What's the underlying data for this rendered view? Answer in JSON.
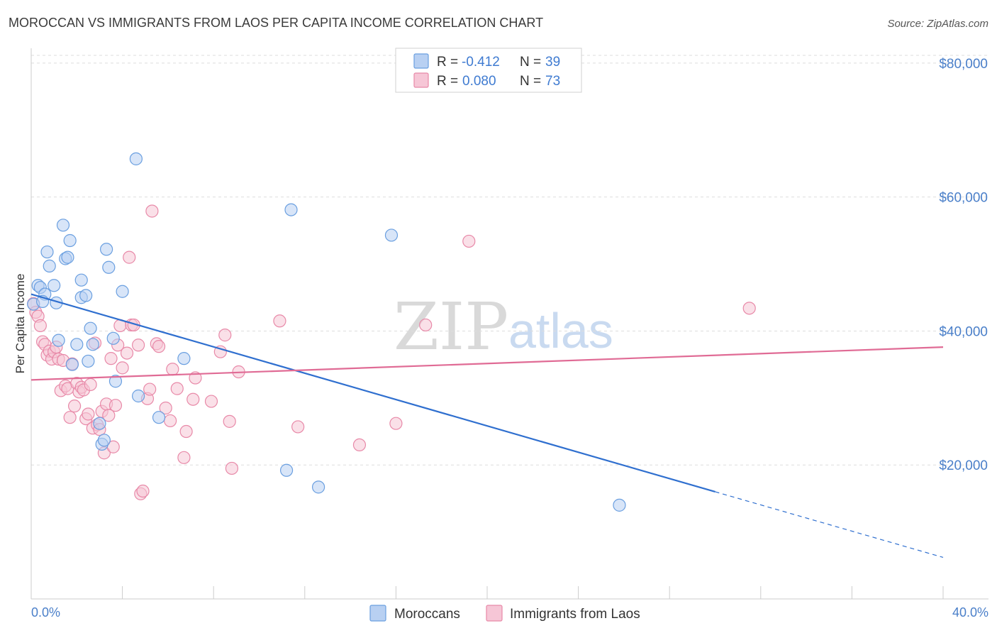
{
  "chart_data": {
    "type": "scatter",
    "title": "MOROCCAN VS IMMIGRANTS FROM LAOS PER CAPITA INCOME CORRELATION CHART",
    "source": "Source: ZipAtlas.com",
    "ylabel": "Per Capita Income",
    "xlabel": "",
    "xlim": [
      0,
      40
    ],
    "ylim": [
      0,
      82000
    ],
    "x_tick_labels": [
      "0.0%",
      "40.0%"
    ],
    "y_ticks": [
      {
        "value": 20000,
        "label": "$20,000"
      },
      {
        "value": 40000,
        "label": "$40,000"
      },
      {
        "value": 60000,
        "label": "$60,000"
      },
      {
        "value": 80000,
        "label": "$80,000"
      }
    ],
    "watermark": {
      "part1": "ZIP",
      "part2": "atlas"
    },
    "legend": {
      "r_label": "R =",
      "n_label": "N =",
      "entries": [
        {
          "r": "-0.412",
          "n": "39"
        },
        {
          "r": "0.080",
          "n": "73"
        }
      ]
    },
    "series": [
      {
        "name": "Moroccans",
        "color": "#6a9fe0",
        "fill": "#b8d0f2",
        "trend": {
          "x0": 0,
          "y0": 45500,
          "x1": 30,
          "y1": 16000,
          "dash_to_x": 40,
          "dash_to_y": 6200,
          "color": "#2f6fcf"
        },
        "points": [
          [
            0.1,
            44000
          ],
          [
            0.3,
            46800
          ],
          [
            0.4,
            46500
          ],
          [
            0.6,
            45500
          ],
          [
            0.7,
            51800
          ],
          [
            0.8,
            49700
          ],
          [
            1.0,
            46800
          ],
          [
            1.1,
            44200
          ],
          [
            1.2,
            38600
          ],
          [
            1.4,
            55800
          ],
          [
            1.5,
            50800
          ],
          [
            1.6,
            51000
          ],
          [
            1.7,
            53500
          ],
          [
            1.8,
            35000
          ],
          [
            2.0,
            38000
          ],
          [
            2.2,
            47600
          ],
          [
            2.2,
            45000
          ],
          [
            2.4,
            45300
          ],
          [
            2.6,
            40400
          ],
          [
            2.5,
            35500
          ],
          [
            2.7,
            38000
          ],
          [
            3.0,
            26200
          ],
          [
            3.1,
            23100
          ],
          [
            3.2,
            23700
          ],
          [
            3.3,
            52200
          ],
          [
            3.4,
            49500
          ],
          [
            3.6,
            38900
          ],
          [
            3.7,
            32500
          ],
          [
            4.0,
            45900
          ],
          [
            4.6,
            65700
          ],
          [
            4.7,
            30300
          ],
          [
            5.6,
            27100
          ],
          [
            6.7,
            35900
          ],
          [
            11.2,
            19200
          ],
          [
            11.4,
            58100
          ],
          [
            12.6,
            16700
          ],
          [
            15.8,
            54300
          ],
          [
            25.8,
            14000
          ],
          [
            0.5,
            44400
          ]
        ]
      },
      {
        "name": "Immigrants from Laos",
        "color": "#e889a8",
        "fill": "#f6c6d6",
        "trend": {
          "x0": 0,
          "y0": 32700,
          "x1": 40,
          "y1": 37600,
          "color": "#e06b95"
        },
        "points": [
          [
            0.1,
            44100
          ],
          [
            0.2,
            42800
          ],
          [
            0.3,
            42200
          ],
          [
            0.4,
            40800
          ],
          [
            0.5,
            38400
          ],
          [
            0.6,
            38000
          ],
          [
            0.7,
            36400
          ],
          [
            0.8,
            37000
          ],
          [
            0.9,
            35800
          ],
          [
            1.0,
            36900
          ],
          [
            1.1,
            37600
          ],
          [
            1.2,
            35800
          ],
          [
            1.3,
            31100
          ],
          [
            1.4,
            35600
          ],
          [
            1.5,
            31800
          ],
          [
            1.6,
            31400
          ],
          [
            1.7,
            27100
          ],
          [
            1.8,
            35100
          ],
          [
            1.9,
            28800
          ],
          [
            2.0,
            32200
          ],
          [
            2.1,
            30900
          ],
          [
            2.2,
            31600
          ],
          [
            2.3,
            31200
          ],
          [
            2.4,
            26900
          ],
          [
            2.5,
            27600
          ],
          [
            2.6,
            32000
          ],
          [
            2.7,
            25500
          ],
          [
            2.8,
            38200
          ],
          [
            2.9,
            26000
          ],
          [
            3.0,
            25300
          ],
          [
            3.1,
            28000
          ],
          [
            3.2,
            21800
          ],
          [
            3.3,
            29100
          ],
          [
            3.4,
            27400
          ],
          [
            3.5,
            35900
          ],
          [
            3.6,
            22700
          ],
          [
            3.7,
            28900
          ],
          [
            3.8,
            37900
          ],
          [
            3.9,
            40800
          ],
          [
            4.0,
            34500
          ],
          [
            4.2,
            36700
          ],
          [
            4.3,
            51000
          ],
          [
            4.4,
            40900
          ],
          [
            4.5,
            40900
          ],
          [
            4.7,
            37900
          ],
          [
            4.8,
            15700
          ],
          [
            4.9,
            16100
          ],
          [
            5.1,
            29900
          ],
          [
            5.2,
            31300
          ],
          [
            5.3,
            57900
          ],
          [
            5.5,
            38100
          ],
          [
            5.6,
            37700
          ],
          [
            5.9,
            28500
          ],
          [
            6.1,
            26600
          ],
          [
            6.2,
            34300
          ],
          [
            6.4,
            31400
          ],
          [
            6.7,
            21100
          ],
          [
            6.8,
            25000
          ],
          [
            7.1,
            29800
          ],
          [
            7.2,
            33000
          ],
          [
            7.9,
            29500
          ],
          [
            8.3,
            36900
          ],
          [
            8.5,
            39400
          ],
          [
            8.7,
            26500
          ],
          [
            8.8,
            19500
          ],
          [
            9.1,
            33900
          ],
          [
            10.9,
            41500
          ],
          [
            11.7,
            25700
          ],
          [
            14.4,
            23000
          ],
          [
            16.0,
            26200
          ],
          [
            17.3,
            40900
          ],
          [
            19.2,
            53400
          ],
          [
            31.5,
            43400
          ]
        ]
      }
    ]
  }
}
